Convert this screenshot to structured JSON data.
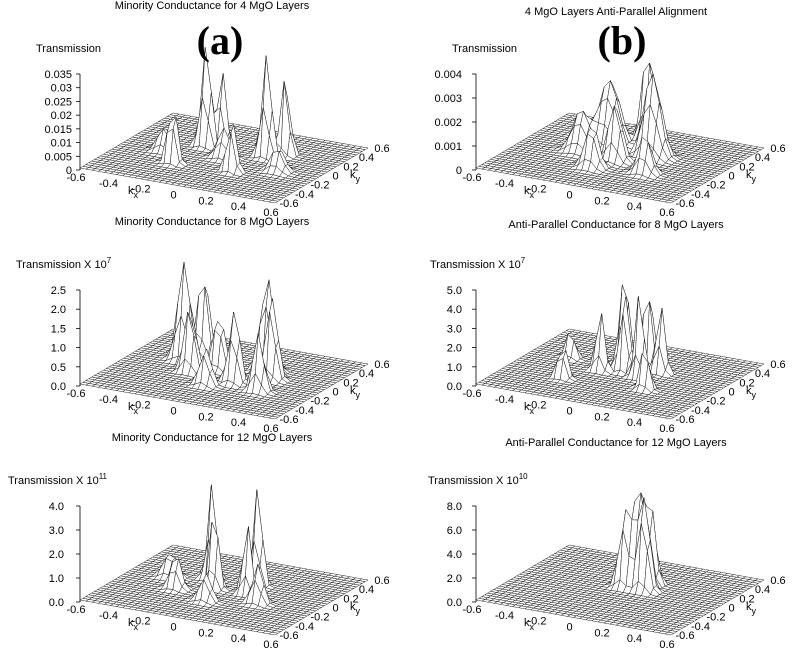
{
  "panels": [
    {
      "label": "(a)",
      "title": "Minority Conductance for 4 MgO Layers",
      "z_label": {
        "text": "Transmission"
      },
      "z_ticks": [
        "0.035",
        "0.03",
        "0.025",
        "0.02",
        "0.015",
        "0.01",
        "0.005",
        "0"
      ],
      "kx_label": {
        "base": "k",
        "sub": "x"
      },
      "ky_label": {
        "base": "k",
        "sub": "y"
      },
      "kx_ticks": [
        "-0.6",
        "-0.4",
        "-0.2",
        "0",
        "0.2",
        "0.4",
        "0.6"
      ],
      "ky_ticks": [
        "-0.6",
        "-0.4",
        "-0.2",
        "0",
        "0.2",
        "0.4",
        "0.6"
      ]
    },
    {
      "label": "(b)",
      "title": "4 MgO Layers  Anti-Parallel Alignment",
      "z_label": {
        "text": "Transmission"
      },
      "z_ticks": [
        "0.004",
        "0.003",
        "0.002",
        "0.001",
        "0"
      ],
      "kx_label": {
        "base": "k",
        "sub": "x"
      },
      "ky_label": {
        "base": "k",
        "sub": "y"
      },
      "kx_ticks": [
        "-0.6",
        "-0.4",
        "-0.2",
        "0",
        "0.2",
        "0.4",
        "0.6"
      ],
      "ky_ticks": [
        "-0.6",
        "-0.4",
        "-0.2",
        "0",
        "0.2",
        "0.4",
        "0.6"
      ]
    },
    {
      "title": "Minority Conductance for 8 MgO Layers",
      "z_label": {
        "text": "Transmission X 10",
        "exp": "7"
      },
      "z_ticks": [
        "2.5",
        "2.0",
        "1.5",
        "1.0",
        "0.5",
        "0.0"
      ],
      "kx_label": {
        "base": "k",
        "sub": "x"
      },
      "ky_label": {
        "base": "k",
        "sub": "y"
      },
      "kx_ticks": [
        "-0.6",
        "-0.4",
        "-0.2",
        "0",
        "0.2",
        "0.4",
        "0.6"
      ],
      "ky_ticks": [
        "-0.6",
        "-0.4",
        "-0.2",
        "0",
        "0.2",
        "0.4",
        "0.6"
      ]
    },
    {
      "title": "Anti-Parallel Conductance for 8 MgO Layers",
      "z_label": {
        "text": "Transmission X 10",
        "exp": "7"
      },
      "z_ticks": [
        "5.0",
        "4.0",
        "3.0",
        "2.0",
        "1.0",
        "0.0"
      ],
      "kx_label": {
        "base": "k",
        "sub": "x"
      },
      "ky_label": {
        "base": "k",
        "sub": "y"
      },
      "kx_ticks": [
        "-0.6",
        "-0.4",
        "-0.2",
        "0",
        "0.2",
        "0.4",
        "0.6"
      ],
      "ky_ticks": [
        "-0.6",
        "-0.4",
        "-0.2",
        "0",
        "0.2",
        "0.4",
        "0.6"
      ]
    },
    {
      "title": "Minority Conductance for 12 MgO Layers",
      "z_label": {
        "text": "Transmission X 10",
        "exp": "11"
      },
      "z_ticks": [
        "4.0",
        "3.0",
        "2.0",
        "1.0",
        "0.0"
      ],
      "kx_label": {
        "base": "k",
        "sub": "x"
      },
      "ky_label": {
        "base": "k",
        "sub": "y"
      },
      "kx_ticks": [
        "-0.6",
        "-0.4",
        "-0.2",
        "0",
        "0.2",
        "0.4",
        "0.6"
      ],
      "ky_ticks": [
        "-0.6",
        "-0.4",
        "-0.2",
        "0",
        "0.2",
        "0.4",
        "0.6"
      ]
    },
    {
      "title": "Anti-Parallel Conductance for 12 MgO Layers",
      "z_label": {
        "text": "Transmission X 10",
        "exp": "10"
      },
      "z_ticks": [
        "8.0",
        "6.0",
        "4.0",
        "2.0",
        "0.0"
      ],
      "kx_label": {
        "base": "k",
        "sub": "x"
      },
      "ky_label": {
        "base": "k",
        "sub": "y"
      },
      "kx_ticks": [
        "-0.6",
        "-0.4",
        "-0.2",
        "0",
        "0.2",
        "0.4",
        "0.6"
      ],
      "ky_ticks": [
        "-0.6",
        "-0.4",
        "-0.2",
        "0",
        "0.2",
        "0.4",
        "0.6"
      ]
    }
  ]
}
